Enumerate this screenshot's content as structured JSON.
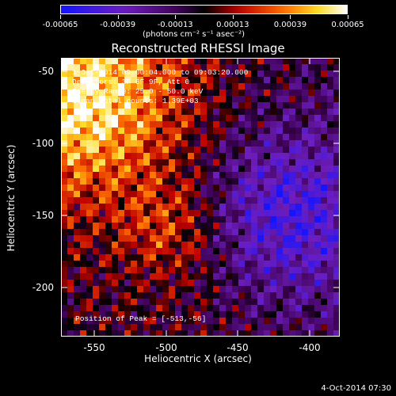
{
  "colorbar": {
    "ticks": [
      "-0.00065",
      "-0.00039",
      "-0.00013",
      "0.00013",
      "0.00039",
      "0.00065"
    ],
    "unit_label": "(photons cm⁻² s⁻¹ asec⁻²)"
  },
  "title": "Reconstructed RHESSI Image",
  "info": {
    "time_range": "1-Oct-2014 09:00:04.000 to 09:03:20.000",
    "detectors": "Detectors: 3F 6F 9F, Att 0",
    "energy": "Energy Range: 25.0 - 50.0 keV",
    "clean": "Clean    Total counts: 1.39E+03",
    "peak": "Position of Peak = [-513,-56]"
  },
  "axes": {
    "xlabel": "Heliocentric X (arcsec)",
    "ylabel": "Heliocentric Y (arcsec)",
    "xticks": [
      "-550",
      "-500",
      "-450",
      "-400"
    ],
    "yticks": [
      "-50",
      "-100",
      "-150",
      "-200"
    ]
  },
  "timestamp": "4-Oct-2014 07:30"
}
